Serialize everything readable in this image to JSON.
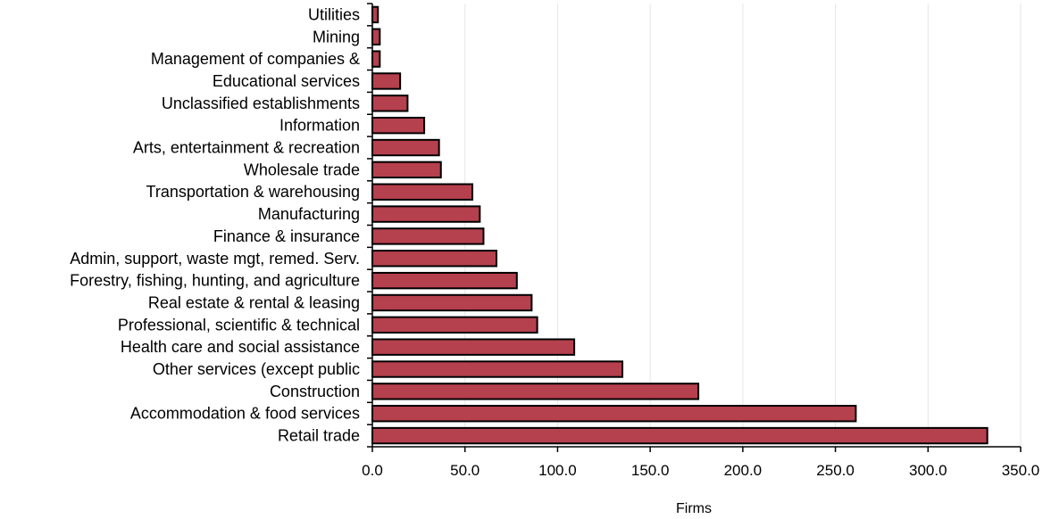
{
  "chart_data": {
    "type": "bar",
    "orientation": "horizontal",
    "title": "",
    "xlabel": "Firms",
    "ylabel": "",
    "categories": [
      "Utilities",
      "Mining",
      "Management of companies &",
      "Educational services",
      "Unclassified establishments",
      "Information",
      "Arts, entertainment & recreation",
      "Wholesale trade",
      "Transportation & warehousing",
      "Manufacturing",
      "Finance & insurance",
      "Admin, support, waste mgt, remed. Serv.",
      "Forestry, fishing, hunting, and agriculture",
      "Real estate & rental & leasing",
      "Professional, scientific & technical",
      "Health care and social assistance",
      "Other services (except public",
      "Construction",
      "Accommodation & food services",
      "Retail trade"
    ],
    "values": [
      3,
      4,
      4,
      15,
      19,
      28,
      36,
      37,
      54,
      58,
      60,
      67,
      78,
      86,
      89,
      109,
      135,
      176,
      261,
      332
    ],
    "xlim": [
      0,
      350
    ],
    "xticks": [
      0,
      50,
      100,
      150,
      200,
      250,
      300,
      350
    ],
    "xtick_labels": [
      "0.0",
      "50.0",
      "100.0",
      "150.0",
      "200.0",
      "250.0",
      "300.0",
      "350.0"
    ],
    "grid": true,
    "legend": "none",
    "bar_color": "#b5404e",
    "bar_edge_color": "#000000"
  }
}
